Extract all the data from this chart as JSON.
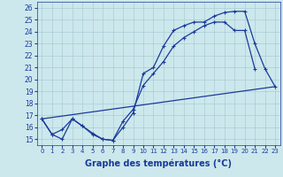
{
  "xlabel": "Graphe des températures (°C)",
  "bg_color": "#cce8ec",
  "grid_color": "#aaccd4",
  "line_color": "#1a3a9a",
  "x_ticks": [
    0,
    1,
    2,
    3,
    4,
    5,
    6,
    7,
    8,
    9,
    10,
    11,
    12,
    13,
    14,
    15,
    16,
    17,
    18,
    19,
    20,
    21,
    22,
    23
  ],
  "ylim": [
    14.5,
    26.5
  ],
  "xlim": [
    -0.5,
    23.5
  ],
  "yticks": [
    15,
    16,
    17,
    18,
    19,
    20,
    21,
    22,
    23,
    24,
    25,
    26
  ],
  "line1_x": [
    0,
    1,
    2,
    3,
    4,
    5,
    6,
    7,
    8,
    9,
    10,
    11,
    12,
    13,
    14,
    15,
    16,
    17,
    18,
    19,
    20,
    21,
    22,
    23
  ],
  "line1_y": [
    16.7,
    15.4,
    15.8,
    16.7,
    16.1,
    15.5,
    15.0,
    14.9,
    16.0,
    17.2,
    20.5,
    21.0,
    22.8,
    24.1,
    24.5,
    24.8,
    24.8,
    25.3,
    25.6,
    25.7,
    25.7,
    23.0,
    20.9,
    19.4
  ],
  "line2_x": [
    0,
    23
  ],
  "line2_y": [
    16.7,
    19.4
  ],
  "line3_x": [
    0,
    1,
    2,
    3,
    4,
    5,
    6,
    7,
    8,
    9,
    10,
    11,
    12,
    13,
    14,
    15,
    16,
    17,
    18,
    19,
    20,
    21
  ],
  "line3_y": [
    16.7,
    15.4,
    15.0,
    16.7,
    16.1,
    15.4,
    15.0,
    14.9,
    16.5,
    17.5,
    19.5,
    20.5,
    21.5,
    22.8,
    23.5,
    24.0,
    24.5,
    24.8,
    24.8,
    24.1,
    24.1,
    20.9
  ]
}
